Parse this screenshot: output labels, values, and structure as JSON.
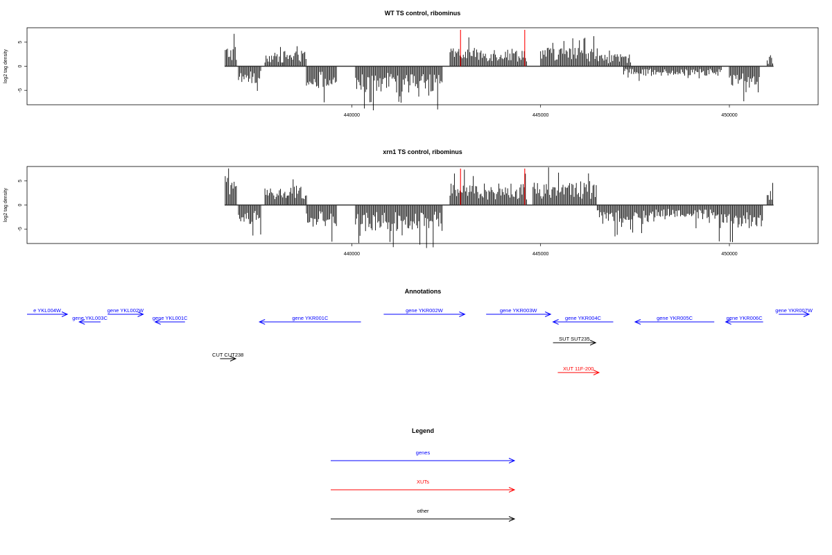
{
  "chart_data": [
    {
      "type": "bar",
      "title": "WT TS control, ribominus",
      "ylabel": "log2 tag density",
      "xlim": [
        431400,
        452350
      ],
      "ylim": [
        -8,
        8
      ],
      "xticks": [
        440000,
        445000,
        450000
      ],
      "xtick_labels": [
        "440000",
        "445000",
        "450000"
      ],
      "yticks": [
        -5,
        0,
        5
      ],
      "ytick_labels": [
        "-5",
        "0",
        "5"
      ],
      "grid": false,
      "highlight_color": "#ff0000",
      "highlight_x": [
        442880,
        444580
      ],
      "segments": [
        {
          "start": 436650,
          "end": 436950,
          "value": 4.2
        },
        {
          "start": 437000,
          "end": 437600,
          "value": -3.5
        },
        {
          "start": 437700,
          "end": 438200,
          "value": 2.8
        },
        {
          "start": 438200,
          "end": 438800,
          "value": 3.2
        },
        {
          "start": 438800,
          "end": 439600,
          "value": -4.5
        },
        {
          "start": 440100,
          "end": 442400,
          "value": -5.5
        },
        {
          "start": 442600,
          "end": 444650,
          "value": 3.8
        },
        {
          "start": 445000,
          "end": 446500,
          "value": 4.0
        },
        {
          "start": 446500,
          "end": 447400,
          "value": 2.5
        },
        {
          "start": 447200,
          "end": 449800,
          "value": -2.0
        },
        {
          "start": 450000,
          "end": 450800,
          "value": -4.5
        },
        {
          "start": 451000,
          "end": 451150,
          "value": 2.0
        }
      ]
    },
    {
      "type": "bar",
      "title": "xrn1 TS control, ribominus",
      "ylabel": "log2 tag density",
      "xlim": [
        431400,
        452350
      ],
      "ylim": [
        -8,
        8
      ],
      "xticks": [
        440000,
        445000,
        450000
      ],
      "xtick_labels": [
        "440000",
        "445000",
        "450000"
      ],
      "yticks": [
        -5,
        0,
        5
      ],
      "ytick_labels": [
        "-5",
        "0",
        "5"
      ],
      "grid": false,
      "highlight_color": "#ff0000",
      "highlight_x": [
        442880,
        444580
      ],
      "segments": [
        {
          "start": 436650,
          "end": 436950,
          "value": 5.0
        },
        {
          "start": 437000,
          "end": 437600,
          "value": -4.0
        },
        {
          "start": 437700,
          "end": 438300,
          "value": 3.5
        },
        {
          "start": 438300,
          "end": 438800,
          "value": 4.0
        },
        {
          "start": 438800,
          "end": 439600,
          "value": -4.5
        },
        {
          "start": 440100,
          "end": 442400,
          "value": -5.5
        },
        {
          "start": 442600,
          "end": 444650,
          "value": 4.5
        },
        {
          "start": 444800,
          "end": 446500,
          "value": 5.0
        },
        {
          "start": 446500,
          "end": 448000,
          "value": -4.0
        },
        {
          "start": 448000,
          "end": 449700,
          "value": -3.0
        },
        {
          "start": 449700,
          "end": 450900,
          "value": -5.0
        },
        {
          "start": 451000,
          "end": 451150,
          "value": 3.0
        }
      ]
    }
  ],
  "annotations": {
    "title": "Annotations",
    "features": [
      {
        "label": "e YKL004W",
        "start": 431400,
        "end": 432250,
        "strand": "+",
        "track": 0,
        "kind": "gene"
      },
      {
        "label": "gene YKL003C",
        "start": 432500,
        "end": 432950,
        "strand": "-",
        "track": 1,
        "kind": "gene"
      },
      {
        "label": "gene YKL002W",
        "start": 433100,
        "end": 433850,
        "strand": "+",
        "track": 0,
        "kind": "gene"
      },
      {
        "label": "gene YKL001C",
        "start": 434100,
        "end": 434730,
        "strand": "-",
        "track": 1,
        "kind": "gene"
      },
      {
        "label": "gene YKR001C",
        "start": 436300,
        "end": 438440,
        "strand": "-",
        "track": 1,
        "kind": "gene"
      },
      {
        "label": "gene YKR002W",
        "start": 438920,
        "end": 440630,
        "strand": "+",
        "track": 0,
        "kind": "gene"
      },
      {
        "label": "gene YKR003W",
        "start": 441080,
        "end": 442440,
        "strand": "+",
        "track": 0,
        "kind": "gene"
      },
      {
        "label": "gene YKR004C",
        "start": 442490,
        "end": 443760,
        "strand": "-",
        "track": 1,
        "kind": "gene"
      },
      {
        "label": "gene YKR005C",
        "start": 444220,
        "end": 445890,
        "strand": "-",
        "track": 1,
        "kind": "gene"
      },
      {
        "label": "gene YKR006C",
        "start": 446130,
        "end": 446920,
        "strand": "-",
        "track": 1,
        "kind": "gene"
      },
      {
        "label": "gene YKR007W",
        "start": 447250,
        "end": 447890,
        "strand": "+",
        "track": 0,
        "kind": "gene"
      },
      {
        "label": "SUT SUT235",
        "start": 442490,
        "end": 443390,
        "strand": "+",
        "track": 2,
        "kind": "other"
      },
      {
        "label": "CUT CUT238",
        "start": 435470,
        "end": 435800,
        "strand": "+",
        "track": 3,
        "kind": "other"
      },
      {
        "label": "XUT 11F-200",
        "start": 442590,
        "end": 443460,
        "strand": "+",
        "track": 4,
        "kind": "xut"
      }
    ]
  },
  "legend": {
    "title": "Legend",
    "items": [
      {
        "label": "genes",
        "color": "#0000ff"
      },
      {
        "label": "XUTs",
        "color": "#ff0000"
      },
      {
        "label": "other",
        "color": "#000000"
      }
    ]
  },
  "colors": {
    "gene": "#0000ff",
    "xut": "#ff0000",
    "other": "#000000"
  }
}
